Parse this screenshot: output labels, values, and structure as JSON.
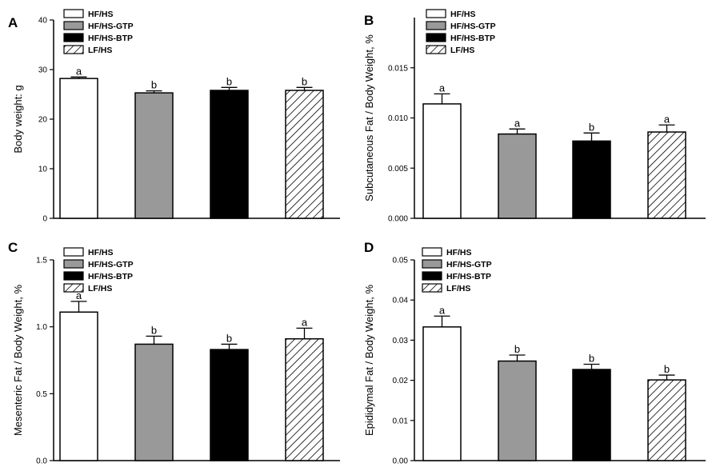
{
  "legend": [
    "HF/HS",
    "HF/HS-GTP",
    "HF/HS-BTP",
    "LF/HS"
  ],
  "chart_data": [
    {
      "type": "bar",
      "panel_label": "A",
      "ylabel": "Body weight: g",
      "ylim": [
        0,
        40
      ],
      "yticks": [
        "0",
        "10",
        "20",
        "30",
        "40"
      ],
      "legend_position": "top-left",
      "categories": [
        "HF/HS",
        "HF/HS-GTP",
        "HF/HS-BTP",
        "LF/HS"
      ],
      "values": [
        28.2,
        25.3,
        25.8,
        25.8
      ],
      "errors": [
        0.3,
        0.4,
        0.6,
        0.6
      ],
      "sig_labels": [
        "a",
        "b",
        "b",
        "b"
      ]
    },
    {
      "type": "bar",
      "panel_label": "B",
      "ylabel": "Subcutaneous Fat / Body Weight, %",
      "ylim": [
        0,
        0.02
      ],
      "yticks": [
        "0.000",
        "0.005",
        "0.010",
        "0.015"
      ],
      "legend_position": "top-left",
      "categories": [
        "HF/HS",
        "HF/HS-GTP",
        "HF/HS-BTP",
        "LF/HS"
      ],
      "values": [
        0.0114,
        0.0084,
        0.0077,
        0.0086
      ],
      "errors": [
        0.001,
        0.0005,
        0.0008,
        0.0007
      ],
      "sig_labels": [
        "a",
        "a",
        "b",
        "a"
      ]
    },
    {
      "type": "bar",
      "panel_label": "C",
      "ylabel": "Mesenteric Fat / Body Weight, %",
      "ylim": [
        0,
        1.5
      ],
      "yticks": [
        "0.0",
        "0.5",
        "1.0",
        "1.5"
      ],
      "legend_position": "top-left",
      "categories": [
        "HF/HS",
        "HF/HS-GTP",
        "HF/HS-BTP",
        "LF/HS"
      ],
      "values": [
        1.11,
        0.87,
        0.83,
        0.91
      ],
      "errors": [
        0.08,
        0.06,
        0.04,
        0.08
      ],
      "sig_labels": [
        "a",
        "b",
        "b",
        "a"
      ]
    },
    {
      "type": "bar",
      "panel_label": "D",
      "ylabel": "Epididymal Fat / Body Weight, %",
      "ylim": [
        0,
        0.05
      ],
      "yticks": [
        "0.00",
        "0.01",
        "0.02",
        "0.03",
        "0.04",
        "0.05"
      ],
      "legend_position": "top-left",
      "categories": [
        "HF/HS",
        "HF/HS-GTP",
        "HF/HS-BTP",
        "LF/HS"
      ],
      "values": [
        0.0333,
        0.0248,
        0.0227,
        0.0201
      ],
      "errors": [
        0.0027,
        0.0015,
        0.0013,
        0.0012
      ],
      "sig_labels": [
        "a",
        "b",
        "b",
        "b"
      ]
    }
  ]
}
